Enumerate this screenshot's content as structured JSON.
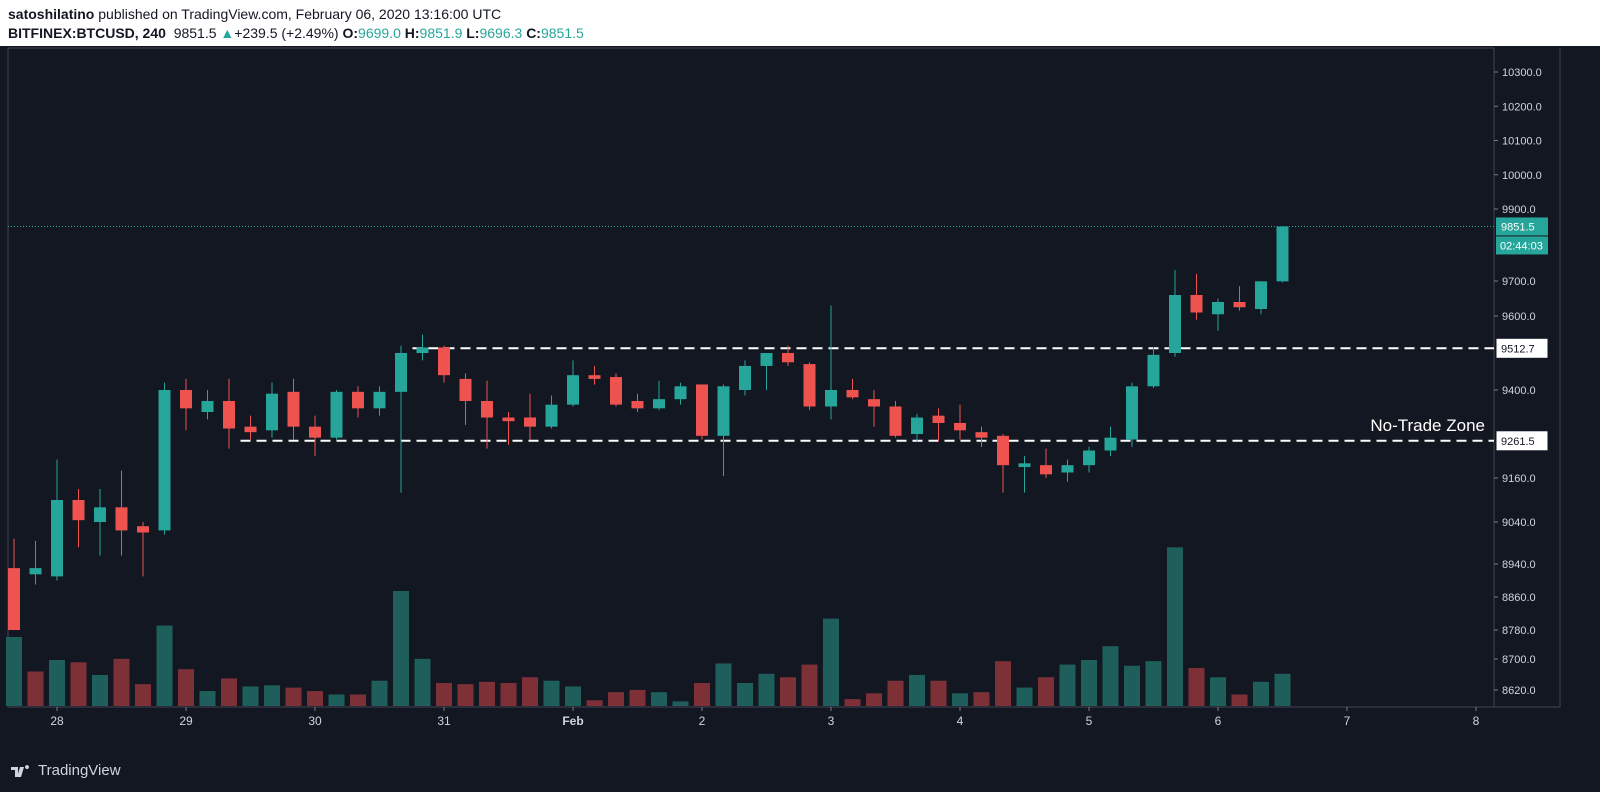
{
  "header": {
    "author": "satoshilatino",
    "published_text": "published on TradingView.com, February 06, 2020 13:16:00 UTC",
    "symbol": "BITFINEX:BTCUSD, 240",
    "last": "9851.5",
    "change": "+239.5 (+2.49%)",
    "open_label": "O:",
    "open": "9699.0",
    "high_label": "H:",
    "high": "9851.9",
    "low_label": "L:",
    "low": "9696.3",
    "close_label": "C:",
    "close": "9851.5"
  },
  "footer": {
    "brand": "TradingView"
  },
  "colors": {
    "bg": "#131722",
    "up": "#26a69a",
    "down": "#ef5350",
    "vol_up": "#1e5f5b",
    "vol_down": "#7d3136",
    "grid_text": "#d1d4dc"
  },
  "chart_data": {
    "type": "candlestick",
    "ylim": [
      8570,
      10370
    ],
    "ytick_labels": [
      "10300.0",
      "10200.0",
      "10100.0",
      "10000.0",
      "9900.0",
      "9851.5",
      "9700.0",
      "9600.0",
      "9512.7",
      "9400.0",
      "9261.5",
      "9160.0",
      "9040.0",
      "8940.0",
      "8860.0",
      "8780.0",
      "8700.0",
      "8620.0"
    ],
    "yticks": [
      10300,
      10200,
      10100,
      10000,
      9900,
      9700,
      9600,
      9400,
      9160,
      9040,
      8940,
      8860,
      8780,
      8700,
      8620
    ],
    "xtick_labels": [
      "28",
      "29",
      "30",
      "31",
      "Feb",
      "2",
      "3",
      "4",
      "5",
      "6",
      "7",
      "8"
    ],
    "xtick_index": [
      2,
      8,
      14,
      20,
      26,
      32,
      38,
      44,
      50,
      56,
      62,
      68
    ],
    "price_tag": "9851.5",
    "countdown": "02:44:03",
    "levels": [
      {
        "price": 9512.7,
        "label": "9512.7",
        "from_index": 19
      },
      {
        "price": 9261.5,
        "label": "9261.5",
        "from_index": 11
      }
    ],
    "zone_label": "No-Trade Zone",
    "candles": [
      [
        0,
        8930,
        8780,
        9000,
        8780
      ],
      [
        1,
        8915,
        8930,
        8995,
        8890
      ],
      [
        2,
        8910,
        9100,
        9210,
        8900
      ],
      [
        3,
        9100,
        9045,
        9130,
        8980
      ],
      [
        4,
        9040,
        9080,
        9130,
        8960
      ],
      [
        5,
        9080,
        9020,
        9180,
        8960
      ],
      [
        6,
        9030,
        9015,
        9040,
        8910
      ],
      [
        7,
        9020,
        9400,
        9420,
        9010
      ],
      [
        8,
        9400,
        9350,
        9430,
        9290
      ],
      [
        9,
        9340,
        9370,
        9400,
        9320
      ],
      [
        10,
        9370,
        9295,
        9430,
        9240
      ],
      [
        11,
        9300,
        9285,
        9330,
        9265
      ],
      [
        12,
        9290,
        9390,
        9420,
        9270
      ],
      [
        13,
        9395,
        9300,
        9430,
        9265
      ],
      [
        14,
        9300,
        9270,
        9330,
        9220
      ],
      [
        15,
        9270,
        9395,
        9400,
        9265
      ],
      [
        16,
        9395,
        9350,
        9410,
        9325
      ],
      [
        17,
        9350,
        9395,
        9410,
        9330
      ],
      [
        18,
        9395,
        9500,
        9520,
        9120
      ],
      [
        19,
        9500,
        9515,
        9550,
        9480
      ],
      [
        20,
        9515,
        9440,
        9520,
        9420
      ],
      [
        21,
        9430,
        9370,
        9445,
        9305
      ],
      [
        22,
        9370,
        9325,
        9425,
        9240
      ],
      [
        23,
        9325,
        9315,
        9340,
        9250
      ],
      [
        24,
        9325,
        9300,
        9390,
        9265
      ],
      [
        25,
        9300,
        9360,
        9385,
        9295
      ],
      [
        26,
        9360,
        9440,
        9480,
        9355
      ],
      [
        27,
        9440,
        9430,
        9465,
        9415
      ],
      [
        28,
        9435,
        9360,
        9445,
        9355
      ],
      [
        29,
        9370,
        9350,
        9390,
        9340
      ],
      [
        30,
        9350,
        9375,
        9425,
        9345
      ],
      [
        31,
        9375,
        9410,
        9420,
        9360
      ],
      [
        32,
        9415,
        9275,
        9415,
        9265
      ],
      [
        33,
        9275,
        9410,
        9415,
        9165
      ],
      [
        34,
        9400,
        9465,
        9480,
        9385
      ],
      [
        35,
        9465,
        9500,
        9500,
        9400
      ],
      [
        36,
        9500,
        9475,
        9520,
        9465
      ],
      [
        37,
        9470,
        9355,
        9475,
        9345
      ],
      [
        38,
        9355,
        9400,
        9630,
        9320
      ],
      [
        39,
        9400,
        9380,
        9430,
        9375
      ],
      [
        40,
        9375,
        9355,
        9400,
        9300
      ],
      [
        41,
        9355,
        9275,
        9370,
        9270
      ],
      [
        42,
        9280,
        9325,
        9335,
        9260
      ],
      [
        43,
        9330,
        9310,
        9350,
        9260
      ],
      [
        44,
        9310,
        9290,
        9360,
        9265
      ],
      [
        45,
        9285,
        9270,
        9300,
        9245
      ],
      [
        46,
        9275,
        9195,
        9280,
        9120
      ],
      [
        47,
        9190,
        9200,
        9220,
        9120
      ],
      [
        48,
        9195,
        9170,
        9240,
        9160
      ],
      [
        49,
        9175,
        9195,
        9210,
        9150
      ],
      [
        50,
        9195,
        9235,
        9245,
        9175
      ],
      [
        51,
        9235,
        9270,
        9300,
        9220
      ],
      [
        52,
        9265,
        9410,
        9420,
        9245
      ],
      [
        53,
        9410,
        9495,
        9515,
        9405
      ],
      [
        54,
        9500,
        9660,
        9730,
        9490
      ],
      [
        55,
        9660,
        9610,
        9720,
        9590
      ],
      [
        56,
        9605,
        9640,
        9650,
        9560
      ],
      [
        57,
        9640,
        9625,
        9685,
        9615
      ],
      [
        58,
        9620,
        9699,
        9700,
        9605
      ],
      [
        59,
        9699,
        9851.5,
        9851.9,
        9696
      ]
    ],
    "volume": [
      [
        0,
        1,
        0.6
      ],
      [
        1,
        0,
        0.3
      ],
      [
        2,
        1,
        0.4
      ],
      [
        3,
        0,
        0.38
      ],
      [
        4,
        1,
        0.27
      ],
      [
        5,
        0,
        0.41
      ],
      [
        6,
        0,
        0.19
      ],
      [
        7,
        1,
        0.7
      ],
      [
        8,
        0,
        0.32
      ],
      [
        9,
        1,
        0.13
      ],
      [
        10,
        0,
        0.24
      ],
      [
        11,
        1,
        0.17
      ],
      [
        12,
        1,
        0.18
      ],
      [
        13,
        0,
        0.16
      ],
      [
        14,
        0,
        0.13
      ],
      [
        15,
        1,
        0.1
      ],
      [
        16,
        0,
        0.1
      ],
      [
        17,
        1,
        0.22
      ],
      [
        18,
        1,
        1.0
      ],
      [
        19,
        1,
        0.41
      ],
      [
        20,
        0,
        0.2
      ],
      [
        21,
        0,
        0.19
      ],
      [
        22,
        0,
        0.21
      ],
      [
        23,
        0,
        0.2
      ],
      [
        24,
        0,
        0.25
      ],
      [
        25,
        1,
        0.22
      ],
      [
        26,
        1,
        0.17
      ],
      [
        27,
        0,
        0.05
      ],
      [
        28,
        0,
        0.12
      ],
      [
        29,
        0,
        0.14
      ],
      [
        30,
        1,
        0.12
      ],
      [
        31,
        1,
        0.04
      ],
      [
        32,
        0,
        0.2
      ],
      [
        33,
        1,
        0.37
      ],
      [
        34,
        1,
        0.2
      ],
      [
        35,
        1,
        0.28
      ],
      [
        36,
        0,
        0.25
      ],
      [
        37,
        0,
        0.36
      ],
      [
        38,
        1,
        0.76
      ],
      [
        39,
        0,
        0.06
      ],
      [
        40,
        0,
        0.11
      ],
      [
        41,
        0,
        0.22
      ],
      [
        42,
        1,
        0.27
      ],
      [
        43,
        0,
        0.22
      ],
      [
        44,
        1,
        0.11
      ],
      [
        45,
        0,
        0.12
      ],
      [
        46,
        0,
        0.39
      ],
      [
        47,
        1,
        0.16
      ],
      [
        48,
        0,
        0.25
      ],
      [
        49,
        1,
        0.36
      ],
      [
        50,
        1,
        0.4
      ],
      [
        51,
        1,
        0.52
      ],
      [
        52,
        1,
        0.35
      ],
      [
        53,
        1,
        0.39
      ],
      [
        54,
        1,
        1.38
      ],
      [
        55,
        0,
        0.33
      ],
      [
        56,
        1,
        0.25
      ],
      [
        57,
        0,
        0.1
      ],
      [
        58,
        1,
        0.21
      ],
      [
        59,
        1,
        0.28
      ]
    ]
  }
}
